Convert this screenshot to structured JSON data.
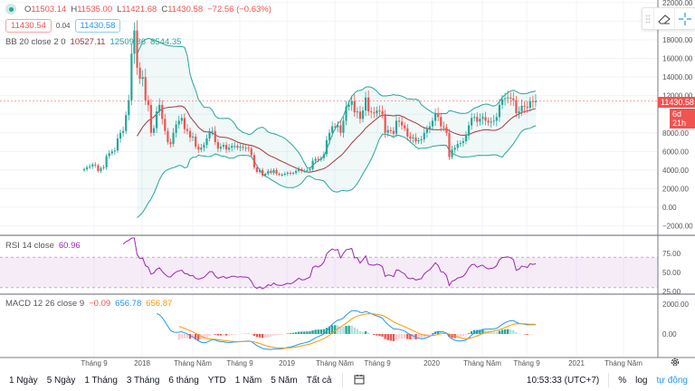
{
  "legend": {
    "symbol_dot_color": "#26a69a",
    "ohlc": {
      "o_label": "O",
      "o": "11503.14",
      "h_label": "H",
      "h": "11535.00",
      "l_label": "L",
      "l": "11421.68",
      "c_label": "C",
      "c": "11430.58",
      "change": "−72.56 (−0.63%)"
    },
    "bid": "11430.54",
    "spread": "0.04",
    "ask": "11430.58",
    "bb": {
      "label": "BB 20 close 2 0",
      "basis": "10527.11",
      "upper": "12509.86",
      "lower": "8544.35"
    },
    "rsi": {
      "label": "RSI 14 close",
      "value": "60.96"
    },
    "macd": {
      "label": "MACD 12 26 close 9",
      "hist": "−0.09",
      "macd": "656.78",
      "signal": "656.87"
    }
  },
  "price_tag": {
    "value": "11430.58",
    "countdown": "6d 21h"
  },
  "price_axis": [
    "22000.00",
    "20000.00",
    "18000.00",
    "16000.00",
    "14000.00",
    "12000.00",
    "10000.00",
    "8000.00",
    "6000.00",
    "4000.00",
    "2000.00",
    "0.00",
    "−2000.00"
  ],
  "rsi_axis": [
    "75.00",
    "50.00",
    "25.00"
  ],
  "macd_axis": [
    "2000.00",
    "0.00"
  ],
  "time_axis": [
    "Tháng 9",
    "2018",
    "Tháng Năm",
    "Tháng 9",
    "2019",
    "Tháng Năm",
    "Tháng 9",
    "2020",
    "Tháng Năm",
    "Tháng 9",
    "2021",
    "Tháng Năm"
  ],
  "toolbar": {
    "icons": [
      "drag-handle-icon",
      "eraser-icon",
      "crosshair-icon"
    ]
  },
  "bottom": {
    "ranges": [
      "1 Ngày",
      "5 Ngày",
      "1 Tháng",
      "3 Tháng",
      "6 tháng",
      "YTD",
      "1 Năm",
      "5 Năm",
      "Tất cả"
    ],
    "time": "10:53:33 (UTC+7)",
    "percent": "%",
    "log": "log",
    "auto": "tự động"
  },
  "colors": {
    "up": "#26a69a",
    "down": "#ef5350",
    "bb_basis": "#a5373b",
    "bb_band": "#26a69a",
    "rsi": "#9c27b0",
    "macd": "#2196f3",
    "signal": "#ff9800",
    "accent": "#2196f3"
  },
  "chart_data": {
    "type": "candlestick",
    "interval": "1 week",
    "start": "2017-08-07",
    "closes": [
      4100,
      4300,
      4400,
      4600,
      4500,
      3900,
      4200,
      4300,
      5500,
      5800,
      6000,
      6100,
      7400,
      8000,
      8200,
      9900,
      11500,
      16500,
      19000,
      15000,
      13800,
      14000,
      11500,
      11000,
      8000,
      8500,
      10300,
      11000,
      9500,
      8200,
      7000,
      6800,
      8000,
      8900,
      9300,
      9600,
      8400,
      8200,
      7500,
      7600,
      6500,
      6200,
      6400,
      6700,
      7400,
      8200,
      8200,
      7000,
      6300,
      6500,
      6700,
      6200,
      6400,
      6600,
      6600,
      6400,
      6500,
      6400,
      6400,
      6300,
      5600,
      4300,
      3800,
      4000,
      3400,
      3600,
      3900,
      3700,
      4000,
      3600,
      3500,
      3500,
      3600,
      3700,
      3600,
      3700,
      3900,
      4100,
      3900,
      3900,
      4000,
      4100,
      5000,
      5200,
      5100,
      5300,
      5700,
      7200,
      8000,
      8700,
      8600,
      8800,
      8000,
      9300,
      10800,
      11000,
      11400,
      10200,
      10300,
      9500,
      10400,
      11800,
      10300,
      10200,
      10100,
      10400,
      10300,
      10000,
      8000,
      8300,
      8200,
      7900,
      9300,
      9200,
      8800,
      8500,
      7600,
      7400,
      7500,
      7100,
      7200,
      7300,
      8000,
      8400,
      8700,
      9300,
      10100,
      9700,
      8700,
      8600,
      8000,
      5400,
      6200,
      6400,
      6800,
      6900,
      7100,
      7700,
      8800,
      9600,
      9700,
      9200,
      9500,
      9700,
      9300,
      9100,
      9200,
      9300,
      9700,
      11000,
      11600,
      11700,
      11800,
      11700,
      11500,
      10100,
      10300,
      10900,
      10800,
      10700,
      11400,
      11300,
      11430.58
    ],
    "indicators": [
      "BB 20 close 2",
      "RSI 14",
      "MACD 12 26 9"
    ],
    "ylim": [
      -2500,
      22000
    ]
  }
}
